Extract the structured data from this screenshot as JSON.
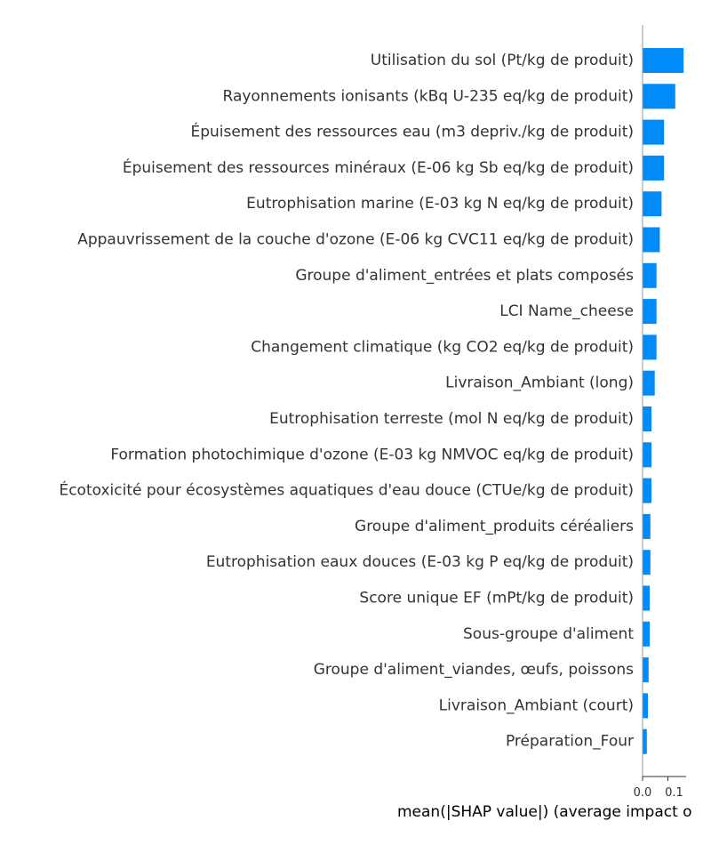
{
  "chart_data": {
    "type": "bar",
    "orientation": "horizontal",
    "xlabel": "mean(|SHAP value|) (average impact o",
    "xticks": [
      "0.0",
      "0.1"
    ],
    "xtick_values": [
      0.0,
      0.1
    ],
    "xlim": [
      0,
      0.172
    ],
    "grid": false,
    "bar_color": "#008bfb",
    "categories": [
      "Utilisation du sol (Pt/kg de produit)",
      "Rayonnements ionisants (kBq U-235 eq/kg de produit)",
      "Épuisement des ressources eau (m3 depriv./kg de produit)",
      "Épuisement des ressources minéraux (E-06 kg Sb eq/kg de produit)",
      "Eutrophisation marine (E-03 kg N eq/kg de produit)",
      "Appauvrissement de la couche d'ozone (E-06 kg CVC11 eq/kg de produit)",
      "Groupe d'aliment_entrées et plats composés",
      "LCI Name_cheese",
      "Changement climatique (kg CO2 eq/kg de produit)",
      "Livraison_Ambiant (long)",
      "Eutrophisation terreste (mol N eq/kg de produit)",
      "Formation photochimique d'ozone (E-03 kg NMVOC eq/kg de produit)",
      "Écotoxicité pour écosystèmes aquatiques d'eau douce (CTUe/kg de produit)",
      "Groupe d'aliment_produits céréaliers",
      "Eutrophisation eaux douces (E-03 kg P eq/kg de produit)",
      "Score unique EF (mPt/kg de produit)",
      "Sous-groupe d'aliment",
      "Groupe d'aliment_viandes, œufs, poissons",
      "Livraison_Ambiant (court)",
      "Préparation_Four"
    ],
    "values": [
      0.162,
      0.129,
      0.085,
      0.085,
      0.075,
      0.068,
      0.055,
      0.055,
      0.055,
      0.048,
      0.035,
      0.035,
      0.035,
      0.031,
      0.031,
      0.028,
      0.028,
      0.024,
      0.021,
      0.017
    ]
  }
}
